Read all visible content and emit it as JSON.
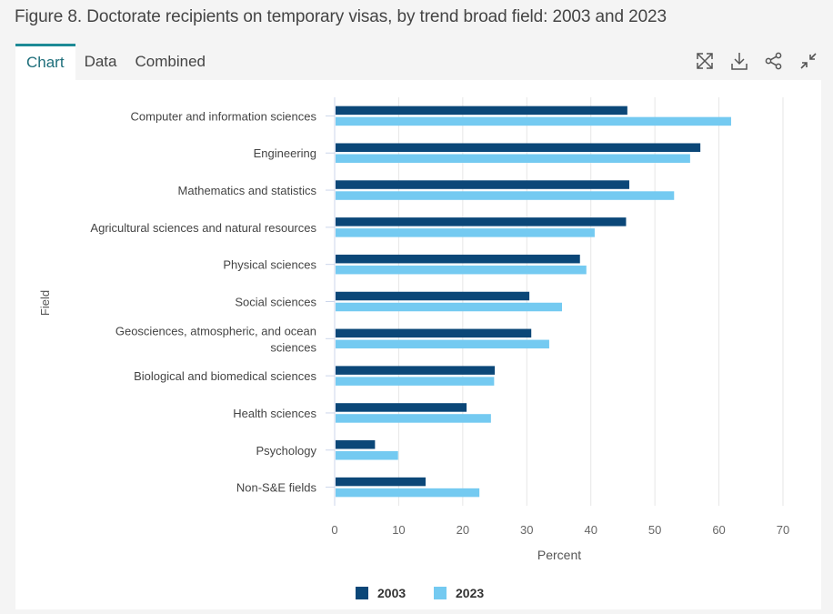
{
  "header": {
    "title": "Figure 8. Doctorate recipients on temporary visas, by trend broad field: 2003 and 2023"
  },
  "tabs": [
    {
      "label": "Chart",
      "active": true
    },
    {
      "label": "Data",
      "active": false
    },
    {
      "label": "Combined",
      "active": false
    }
  ],
  "toolbar": {
    "icons": [
      "expand-icon",
      "download-icon",
      "share-icon",
      "collapse-icon"
    ]
  },
  "colors": {
    "series_2003": "#0b4778",
    "series_2023": "#74caf1",
    "tab_accent": "#1d8a96"
  },
  "chart_data": {
    "type": "bar",
    "orientation": "horizontal",
    "title": "Figure 8. Doctorate recipients on temporary visas, by trend broad field: 2003 and 2023",
    "xlabel": "Percent",
    "ylabel": "Field",
    "xlim": [
      0,
      70
    ],
    "xticks": [
      0,
      10,
      20,
      30,
      40,
      50,
      60,
      70
    ],
    "grid": true,
    "legend_position": "bottom",
    "categories": [
      [
        "Computer and information sciences"
      ],
      [
        "Engineering"
      ],
      [
        "Mathematics and statistics"
      ],
      [
        "Agricultural sciences and natural resources"
      ],
      [
        "Physical sciences"
      ],
      [
        "Social sciences"
      ],
      [
        "Geosciences, atmospheric, and ocean",
        "sciences"
      ],
      [
        "Biological and biomedical sciences"
      ],
      [
        "Health sciences"
      ],
      [
        "Psychology"
      ],
      [
        "Non-S&E fields"
      ]
    ],
    "series": [
      {
        "name": "2003",
        "values": [
          45.7,
          57.1,
          46.0,
          45.5,
          38.3,
          30.4,
          30.7,
          25.0,
          20.6,
          6.3,
          14.2
        ]
      },
      {
        "name": "2023",
        "values": [
          61.9,
          55.5,
          53.0,
          40.6,
          39.3,
          35.5,
          33.5,
          24.9,
          24.4,
          9.9,
          22.6
        ]
      }
    ]
  }
}
